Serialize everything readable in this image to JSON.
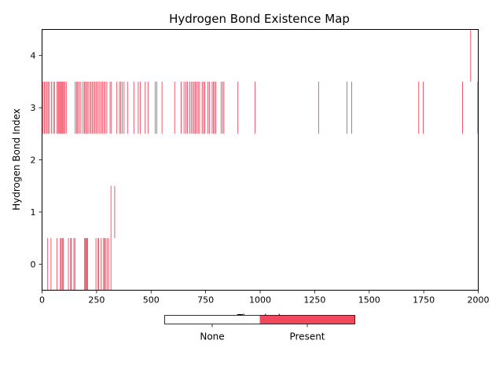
{
  "chart_data": {
    "type": "event-raster",
    "title": "Hydrogen Bond Existence Map",
    "xlabel": "Time (ps)",
    "ylabel": "Hydrogen Bond Index",
    "xlim": [
      0,
      2000
    ],
    "ylim": [
      -0.5,
      4.5
    ],
    "xticks": [
      0,
      250,
      500,
      750,
      1000,
      1250,
      1500,
      1750,
      2000
    ],
    "yticks": [
      0,
      1,
      2,
      3,
      4
    ],
    "grid": false,
    "present_color": "#f2485e",
    "absent_color": "#ffffff",
    "colorbar": {
      "labels": [
        "None",
        "Present"
      ],
      "colors": [
        "#ffffff",
        "#f2485e"
      ],
      "position": "bottom"
    },
    "series": [
      {
        "index": 0,
        "present_times": [
          26,
          41,
          68,
          84,
          88,
          93,
          97,
          121,
          131,
          134,
          146,
          151,
          195,
          199,
          202,
          206,
          209,
          247,
          257,
          260,
          271,
          282,
          287,
          290,
          298,
          305,
          316
        ]
      },
      {
        "index": 1,
        "present_times": [
          316,
          333
        ]
      },
      {
        "index": 2,
        "present_times": []
      },
      {
        "index": 3,
        "present_times": [
          5,
          11,
          17,
          23,
          28,
          34,
          43,
          52,
          58,
          69,
          74,
          78,
          82,
          87,
          91,
          95,
          99,
          104,
          111,
          152,
          158,
          163,
          170,
          178,
          188,
          194,
          199,
          205,
          211,
          218,
          224,
          230,
          236,
          242,
          248,
          255,
          262,
          270,
          277,
          284,
          290,
          297,
          312,
          318,
          343,
          355,
          361,
          368,
          376,
          392,
          421,
          441,
          450,
          473,
          486,
          519,
          526,
          550,
          608,
          638,
          651,
          660,
          667,
          677,
          684,
          691,
          697,
          703,
          709,
          716,
          722,
          734,
          740,
          746,
          760,
          768,
          780,
          786,
          791,
          797,
          821,
          828,
          834,
          898,
          977,
          1268,
          1398,
          1420,
          1727,
          1748,
          1928,
          1998
        ]
      },
      {
        "index": 4,
        "present_times": [
          1965
        ]
      }
    ]
  }
}
